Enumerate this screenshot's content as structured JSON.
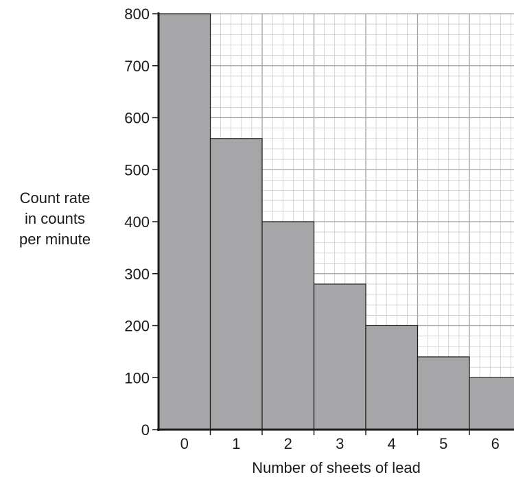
{
  "chart_data": {
    "type": "bar",
    "categories": [
      "0",
      "1",
      "2",
      "3",
      "4",
      "5",
      "6"
    ],
    "values": [
      800,
      560,
      400,
      280,
      200,
      140,
      100
    ],
    "title": "",
    "xlabel": "Number of sheets of lead",
    "ylabel_lines": [
      "Count rate",
      "in counts",
      "per minute"
    ],
    "ylim": [
      0,
      800
    ],
    "yticks": [
      0,
      100,
      200,
      300,
      400,
      500,
      600,
      700,
      800
    ],
    "grid": true,
    "colors": {
      "bar_fill": "#a6a6a8",
      "bar_stroke": "#1a1a1a",
      "grid_major": "#a0a0a0",
      "grid_minor": "#c4c4c4",
      "axis": "#1a1a1a"
    }
  }
}
